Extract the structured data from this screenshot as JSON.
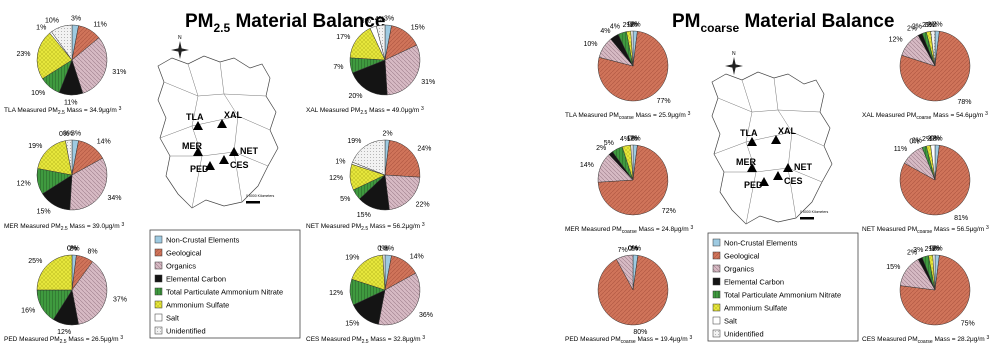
{
  "colors": {
    "Non-Crustal Elements": "#9ecae1",
    "Geological": "#d0745a",
    "Organics": "#d7bac4",
    "Elemental Carbon": "#141414",
    "Total Particulate Ammonium Nitrate": "#3f9a3f",
    "Ammonium Sulfate": "#e6e63c",
    "Salt": "#ffffff",
    "Unidentified": "#ececec"
  },
  "legend_items": [
    "Non-Crustal Elements",
    "Geological",
    "Organics",
    "Elemental Carbon",
    "Total Particulate Ammonium Nitrate",
    "Ammonium Sulfate",
    "Salt",
    "Unidentified"
  ],
  "map_labels": {
    "north": "N",
    "scale_text": "0 5000 Kilometers",
    "sites": [
      "TLA",
      "XAL",
      "MER",
      "NET",
      "PED",
      "CES"
    ]
  },
  "chart_data": [
    {
      "type": "pie",
      "title": "PM2.5 Material Balance",
      "title_main": "PM",
      "title_sub": "2.5",
      "title_rest": " Material Balance",
      "categories": [
        "Non-Crustal Elements",
        "Geological",
        "Organics",
        "Elemental Carbon",
        "Total Particulate Ammonium Nitrate",
        "Ammonium Sulfate",
        "Salt",
        "Unidentified"
      ],
      "sites": [
        {
          "site": "TLA",
          "caption": "TLA Measured PM",
          "sub": "2.5",
          "mass": " Mass = 34.9μg/m ",
          "sup": "3",
          "values": [
            3,
            11,
            31,
            11,
            10,
            23,
            1,
            10
          ]
        },
        {
          "site": "MER",
          "caption": "MER Measured PM",
          "sub": "2.5",
          "mass": " Mass = 39.0μg/m ",
          "sup": "3",
          "values": [
            3,
            14,
            34,
            15,
            12,
            19,
            0,
            3
          ]
        },
        {
          "site": "PED",
          "caption": "PED Measured PM",
          "sub": "2.5",
          "mass": " Mass = 26.5μg/m ",
          "sup": "3",
          "values": [
            2,
            8,
            37,
            12,
            16,
            25,
            0,
            0
          ]
        },
        {
          "site": "XAL",
          "caption": "XAL Measured PM",
          "sub": "2.5",
          "mass": " Mass = 49.0μg/m ",
          "sup": "3",
          "values": [
            3,
            15,
            31,
            20,
            7,
            17,
            3,
            4
          ]
        },
        {
          "site": "NET",
          "caption": "NET Measured PM",
          "sub": "2.5",
          "mass": " Mass = 56.2μg/m ",
          "sup": "3",
          "values": [
            2,
            24,
            22,
            15,
            5,
            12,
            1,
            19
          ]
        },
        {
          "site": "CES",
          "caption": "CES Measured PM",
          "sub": "2.5",
          "mass": " Mass = 32.8μg/m ",
          "sup": "3",
          "values": [
            3,
            14,
            36,
            15,
            12,
            19,
            0,
            1
          ]
        }
      ]
    },
    {
      "type": "pie",
      "title": "PMcoarse Material Balance",
      "title_main": "PM",
      "title_sub": "coarse",
      "title_rest": " Material Balance",
      "categories": [
        "Non-Crustal Elements",
        "Geological",
        "Organics",
        "Elemental Carbon",
        "Total Particulate Ammonium Nitrate",
        "Ammonium Sulfate",
        "Salt",
        "Unidentified"
      ],
      "sites": [
        {
          "site": "TLA",
          "caption": "TLA Measured PM",
          "sub": "coarse",
          "mass": " Mass = 25.9μg/m ",
          "sup": "3",
          "values": [
            2,
            77,
            10,
            4,
            4,
            2,
            1,
            0
          ]
        },
        {
          "site": "MER",
          "caption": "MER Measured PM",
          "sub": "coarse",
          "mass": " Mass = 24.8μg/m ",
          "sup": "3",
          "values": [
            2,
            72,
            14,
            2,
            5,
            4,
            1,
            0
          ]
        },
        {
          "site": "PED",
          "caption": "PED Measured PM",
          "sub": "coarse",
          "mass": " Mass = 19.4μg/m ",
          "sup": "3",
          "values": [
            2,
            80,
            7,
            0,
            0,
            0,
            0,
            0
          ]
        },
        {
          "site": "XAL",
          "caption": "XAL Measured PM",
          "sub": "coarse",
          "mass": " Mass = 54.6μg/m ",
          "sup": "3",
          "values": [
            2,
            78,
            12,
            2,
            2,
            2,
            0,
            2
          ]
        },
        {
          "site": "NET",
          "caption": "NET Measured PM",
          "sub": "coarse",
          "mass": " Mass = 56.5μg/m ",
          "sup": "3",
          "values": [
            2,
            81,
            11,
            0,
            2,
            2,
            2,
            0
          ]
        },
        {
          "site": "CES",
          "caption": "CES Measured PM",
          "sub": "coarse",
          "mass": " Mass = 28.2μg/m ",
          "sup": "3",
          "values": [
            2,
            75,
            15,
            2,
            3,
            2,
            1,
            0
          ]
        }
      ]
    }
  ]
}
